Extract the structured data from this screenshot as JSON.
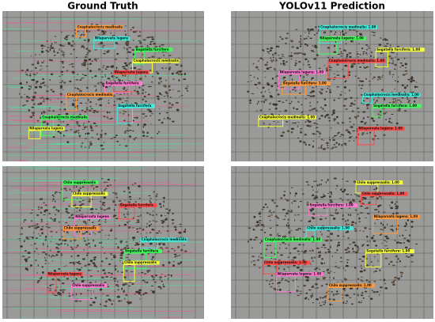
{
  "titles": [
    "Ground Truth",
    "YOLOv11 Prediction"
  ],
  "panels": [
    {
      "boxes": [
        "Cnaphalocrocis medinalis",
        "Nilaparvata lugens",
        "Sogatella furcifera",
        "Cnaphalocrocis medinalis",
        "Nilaparvata lugens",
        "Sogatella furcifera",
        "Cnaphalocrocis medinalis",
        "Sogatella furcifera",
        "Cnaphalocrocis medinalis",
        "Nilaparvata lugens"
      ]
    },
    {
      "boxes": [
        "Cnaphalocrocis medinalis: 1.00",
        "Nilaparvata lugens: 1.00",
        "Sogatella furcifera: 1.00",
        "Cnaphalocrocis medinalis: 1.00",
        "Nilaparvata lugens: 1.00",
        "Sogatella furcifera: 1.00",
        "Cnaphalocrocis medinalis: 1.00",
        "Sogatella furcifera: 1.00",
        "Cnaphalocrocis medinalis: 1.00",
        "Nilaparvata lugens: 1.00"
      ]
    },
    {
      "boxes": [
        "Chilo suppressalis",
        "Chilo suppressalis",
        "Sogatella furcifera",
        "Nilaparvata lugens",
        "Chilo suppressalis",
        "Cnaphalocrocis medinalis",
        "Sogatella furcifera",
        "Chilo suppressalis",
        "Nilaparvata lugens",
        "Chilo suppressalis"
      ]
    },
    {
      "boxes": [
        "Chilo suppressalis: 1.00",
        "Chilo suppressalis: 1.00",
        "Sogatella furcifera: 1.00",
        "Nilaparvata lugens: 1.00",
        "Chilo suppressalis: 1.00",
        "Cnaphalocrocis medinalis: 1.00",
        "Sogatella furcifera: 1.00",
        "Chilo suppressalis: 1.00",
        "Nilaparvata lugens: 1.00",
        "Chilo suppressalis: 1.00"
      ]
    }
  ]
}
